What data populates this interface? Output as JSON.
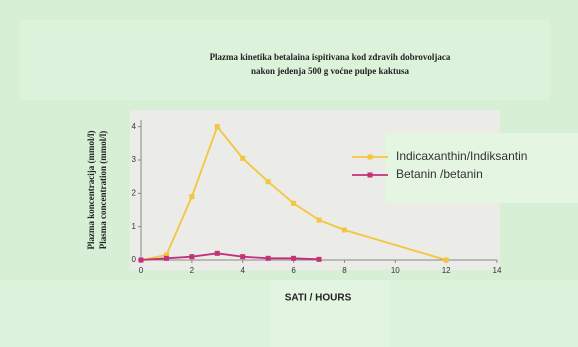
{
  "chart_data": {
    "type": "line",
    "title": [
      "Plazma  kinetika betalaina ispitivana kod zdravih dobrovoljaca",
      "nakon jedenja 500 g  voćne pulpe kaktusa"
    ],
    "ylabel": [
      "Plazma koncentracija (mmol/l)",
      "Plasma concentration (mmol/l)"
    ],
    "xlabel": "SATI / HOURS",
    "xlim": [
      0,
      14
    ],
    "xticks": [
      0,
      2,
      4,
      6,
      8,
      10,
      12,
      14
    ],
    "ylim": [
      0,
      4.2
    ],
    "yticks": [
      0,
      1,
      2,
      3,
      4
    ],
    "series": [
      {
        "name": "Indicaxanthin/Indiksantin",
        "color": "#f4c63d",
        "x": [
          0,
          1,
          2,
          3,
          4,
          5,
          6,
          7,
          8,
          12
        ],
        "values": [
          0,
          0.15,
          1.9,
          4.0,
          3.05,
          2.35,
          1.7,
          1.2,
          0.9,
          0
        ]
      },
      {
        "name": "Betanin /betanin",
        "color": "#c4307a",
        "x": [
          0,
          1,
          2,
          3,
          4,
          5,
          6,
          7
        ],
        "values": [
          0,
          0.05,
          0.1,
          0.2,
          0.1,
          0.05,
          0.05,
          0.02
        ]
      }
    ],
    "legend": "right"
  }
}
